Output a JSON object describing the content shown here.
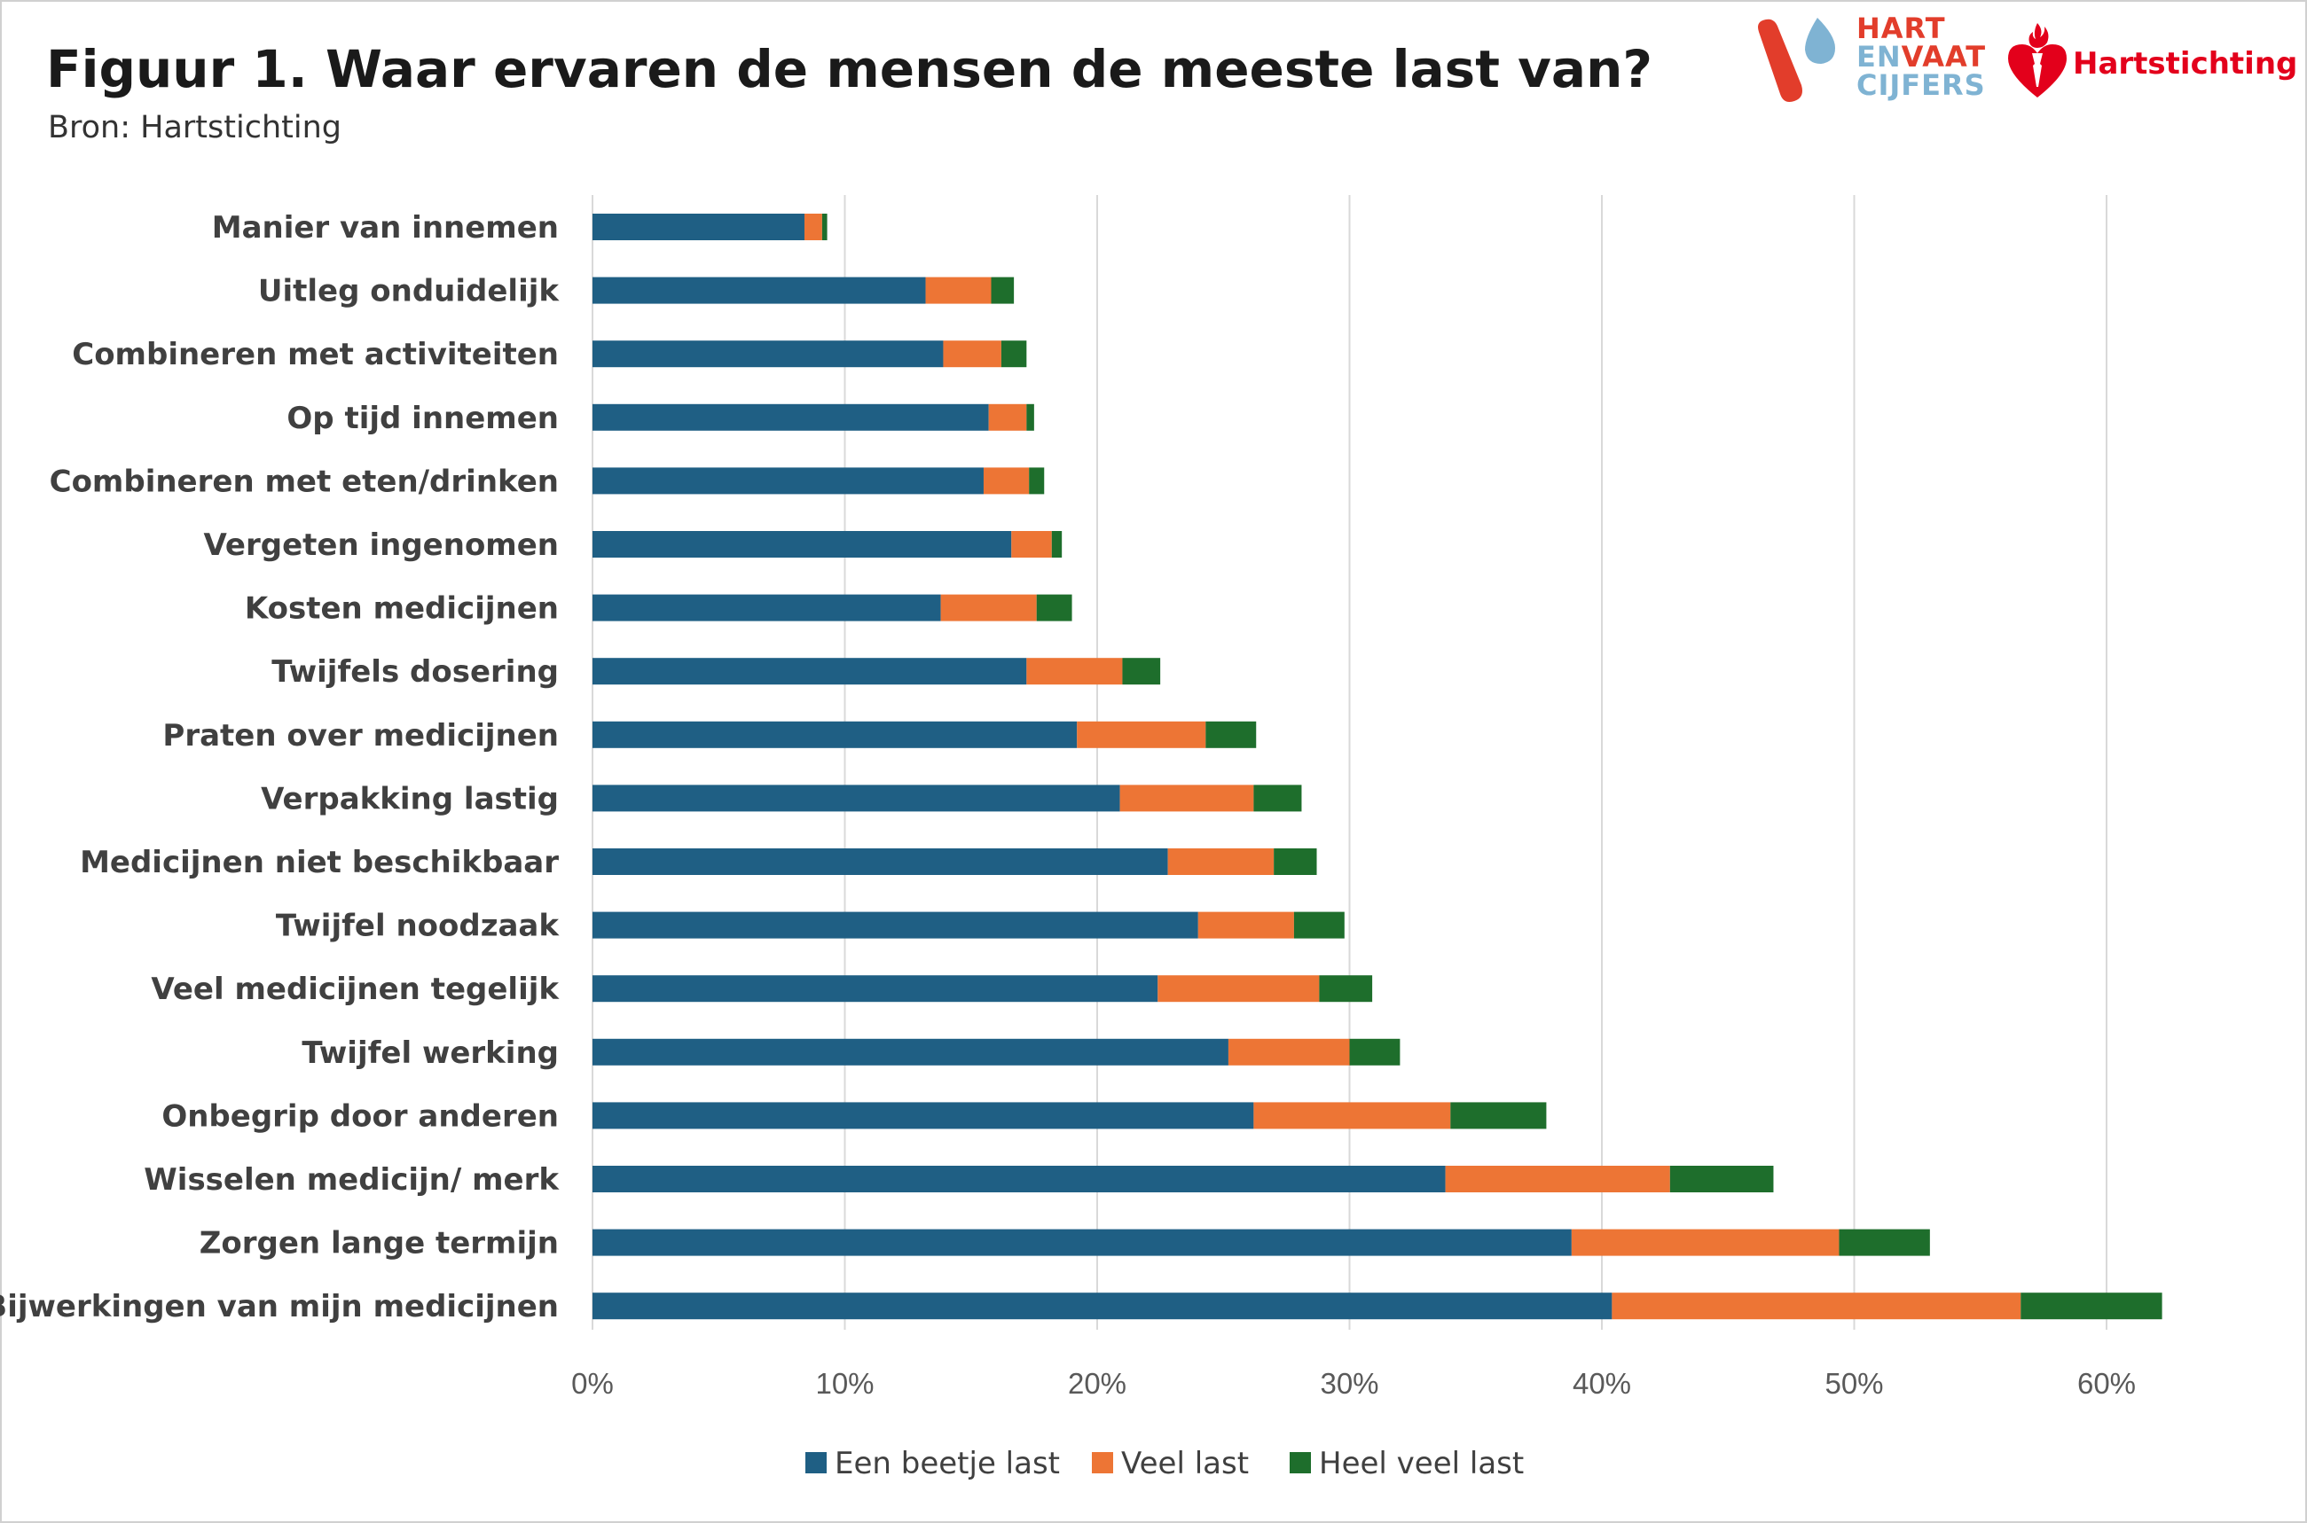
{
  "header": {
    "title": "Figuur 1. Waar ervaren de mensen de meeste last van?",
    "source": "Bron: Hartstichting"
  },
  "logos": {
    "hartenvaat": {
      "line1": "HART",
      "line2_a": "EN",
      "line2_b": "VAAT",
      "line3": "CIJFERS"
    },
    "hartstichting": {
      "name": "Hartstichting",
      "icon": "heart-torch-icon"
    }
  },
  "colors": {
    "een_beetje_last": "#1f5f84",
    "veel_last": "#ed7535",
    "heel_veel_last": "#1e6e2c",
    "grid": "#d9d9d9",
    "brand_red": "#e23d2b",
    "brand_blue": "#7fb3d3",
    "hartstichting_red": "#e3001b"
  },
  "chart_data": {
    "type": "bar",
    "orientation": "horizontal",
    "stacked": true,
    "title": "Figuur 1. Waar ervaren de mensen de meeste last van?",
    "subtitle": "Bron: Hartstichting",
    "categories": [
      "Manier van innemen",
      "Uitleg onduidelijk",
      "Combineren met  activiteiten",
      "Op tijd innemen",
      "Combineren met eten/drinken",
      "Vergeten ingenomen",
      "Kosten medicijnen",
      "Twijfels dosering ",
      "Praten over medicijnen",
      "Verpakking lastig",
      "Medicijnen niet beschikbaar",
      "Twijfel noodzaak",
      "Veel medicijnen tegelijk ",
      "Twijfel werking",
      "Onbegrip door anderen",
      "Wisselen  medicijn/ merk",
      "Zorgen lange termijn",
      "Bijwerkingen van mijn medicijnen"
    ],
    "series": [
      {
        "name": "Een beetje last",
        "color": "#1f5f84",
        "values": [
          8.4,
          13.2,
          13.9,
          15.7,
          15.5,
          16.6,
          13.8,
          17.2,
          19.2,
          20.9,
          22.8,
          24.0,
          22.4,
          25.2,
          26.2,
          33.8,
          38.8,
          40.4
        ]
      },
      {
        "name": "Veel last",
        "color": "#ed7535",
        "values": [
          0.7,
          2.6,
          2.3,
          1.5,
          1.8,
          1.6,
          3.8,
          3.8,
          5.1,
          5.3,
          4.2,
          3.8,
          6.4,
          4.8,
          7.8,
          8.9,
          10.6,
          16.2
        ]
      },
      {
        "name": "Heel veel last",
        "color": "#1e6e2c",
        "values": [
          0.2,
          0.9,
          1.0,
          0.3,
          0.6,
          0.4,
          1.4,
          1.5,
          2.0,
          1.9,
          1.7,
          2.0,
          2.1,
          2.0,
          3.8,
          4.1,
          3.6,
          5.6
        ]
      }
    ],
    "xlim": [
      0,
      60
    ],
    "xticks": [
      "0%",
      "10%",
      "20%",
      "30%",
      "40%",
      "50%",
      "60%"
    ],
    "xtick_values": [
      0,
      10,
      20,
      30,
      40,
      50,
      60
    ],
    "grid": true,
    "legend": {
      "position": "bottom",
      "entries": [
        "Een beetje last",
        "Veel last",
        "Heel veel last"
      ]
    }
  }
}
